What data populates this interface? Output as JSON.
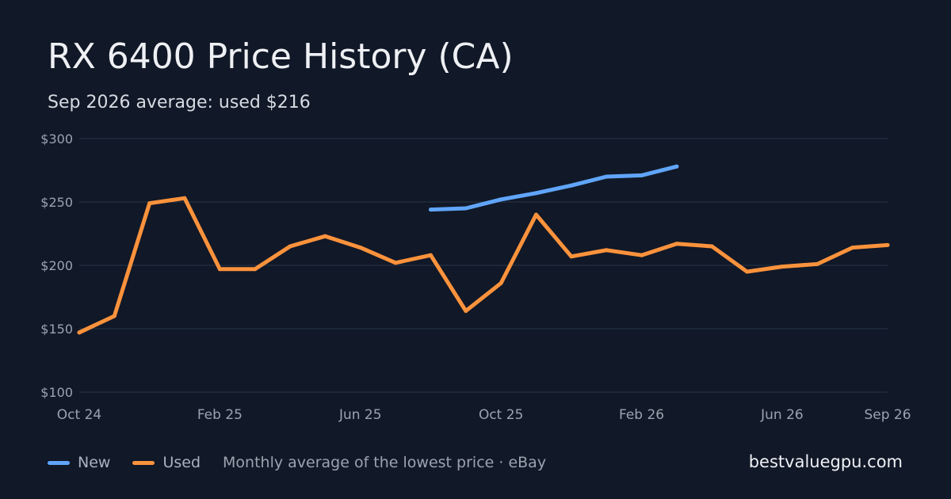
{
  "header": {
    "title": "RX 6400 Price History (CA)",
    "subtitle": "Sep 2026 average: used $216"
  },
  "legend": {
    "note": "Monthly average of the lowest price · eBay"
  },
  "brand": "bestvaluegpu.com",
  "colors": {
    "background": "#111827",
    "grid": "#243042",
    "tick_text": "#9ca3af",
    "new": "#60a5fa",
    "used": "#fb923c"
  },
  "chart_data": {
    "type": "line",
    "title": "RX 6400 Price History (CA)",
    "subtitle": "Sep 2026 average: used $216",
    "x": [
      "2024-10",
      "2024-11",
      "2024-12",
      "2025-01",
      "2025-02",
      "2025-03",
      "2025-04",
      "2025-05",
      "2025-06",
      "2025-07",
      "2025-08",
      "2025-09",
      "2025-10",
      "2025-11",
      "2025-12",
      "2026-01",
      "2026-02",
      "2026-03",
      "2026-04",
      "2026-05",
      "2026-06",
      "2026-07",
      "2026-08",
      "2026-09"
    ],
    "x_tick_labels": [
      {
        "x": "2024-10",
        "label": "Oct 24"
      },
      {
        "x": "2025-02",
        "label": "Feb 25"
      },
      {
        "x": "2025-06",
        "label": "Jun 25"
      },
      {
        "x": "2025-10",
        "label": "Oct 25"
      },
      {
        "x": "2026-02",
        "label": "Feb 26"
      },
      {
        "x": "2026-06",
        "label": "Jun 26"
      },
      {
        "x": "2026-09",
        "label": "Sep 26"
      }
    ],
    "y_ticks": [
      100,
      150,
      200,
      250,
      300
    ],
    "y_tick_labels": [
      "$100",
      "$150",
      "$200",
      "$250",
      "$300"
    ],
    "ylim": [
      100,
      300
    ],
    "grid": true,
    "legend_position": "bottom-left",
    "series": [
      {
        "name": "New",
        "color": "#60a5fa",
        "values": [
          null,
          null,
          null,
          null,
          null,
          null,
          null,
          null,
          null,
          null,
          244,
          245,
          252,
          257,
          263,
          270,
          271,
          278,
          null,
          null,
          null,
          null,
          null,
          null
        ]
      },
      {
        "name": "Used",
        "color": "#fb923c",
        "values": [
          147,
          160,
          249,
          253,
          197,
          197,
          215,
          223,
          214,
          202,
          208,
          164,
          186,
          240,
          207,
          212,
          208,
          217,
          215,
          195,
          199,
          201,
          214,
          216
        ]
      }
    ]
  }
}
